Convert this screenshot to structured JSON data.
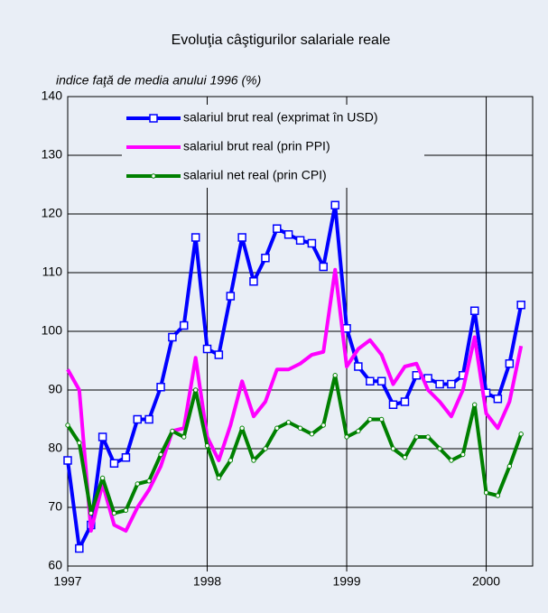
{
  "chart_data": {
    "type": "line",
    "title": "Evoluţia câştigurilor salariale reale",
    "subtitle": "indice faţă de media anului 1996 (%)",
    "x": [
      1997,
      1997.083,
      1997.167,
      1997.25,
      1997.333,
      1997.417,
      1997.5,
      1997.583,
      1997.667,
      1997.75,
      1997.833,
      1997.917,
      1998,
      1998.083,
      1998.167,
      1998.25,
      1998.333,
      1998.417,
      1998.5,
      1998.583,
      1998.667,
      1998.75,
      1998.833,
      1998.917,
      1999,
      1999.083,
      1999.167,
      1999.25,
      1999.333,
      1999.417,
      1999.5,
      1999.583,
      1999.667,
      1999.75,
      1999.833,
      1999.917,
      2000,
      2000.083,
      2000.167,
      2000.25
    ],
    "series": [
      {
        "name": "salariul brut real (exprimat în USD)",
        "color": "#0000ff",
        "marker": "square",
        "values": [
          78,
          63,
          67,
          82,
          77.5,
          78.5,
          85,
          85,
          90.5,
          99,
          101,
          116,
          97,
          96,
          106,
          116,
          108.5,
          112.5,
          117.5,
          116.5,
          115.5,
          115,
          111,
          121.5,
          100.5,
          94,
          91.5,
          91.5,
          87.5,
          88,
          92.5,
          92,
          91,
          91,
          92.5,
          103.5,
          89.5,
          88.5,
          94.5,
          104.5
        ]
      },
      {
        "name": "salariul brut real (prin PPI)",
        "color": "#ff00ff",
        "marker": "none",
        "values": [
          93.5,
          90,
          66,
          74,
          67,
          66,
          70,
          73,
          77,
          83,
          83.5,
          95.5,
          82,
          78,
          84,
          91.5,
          85.5,
          88,
          93.5,
          93.5,
          94.5,
          96,
          96.5,
          110.5,
          94,
          97,
          98.5,
          96,
          91,
          94,
          94.5,
          90,
          88,
          85.5,
          90,
          99,
          86,
          83.5,
          88,
          97.5
        ]
      },
      {
        "name": "salariul net real (prin CPI)",
        "color": "#008000",
        "marker": "circle",
        "values": [
          84,
          81,
          69,
          75,
          69,
          69.5,
          74,
          74.5,
          79,
          83,
          82,
          90,
          80.5,
          75,
          78,
          83.5,
          78,
          80,
          83.5,
          84.5,
          83.5,
          82.5,
          84,
          92.5,
          82,
          83,
          85,
          85,
          80,
          78.5,
          82,
          82,
          80,
          78,
          79,
          87.5,
          72.5,
          72,
          77,
          82.5
        ]
      }
    ],
    "xlim": [
      1997,
      2000.333
    ],
    "xticks": [
      1997,
      1998,
      1999,
      2000
    ],
    "ylim": [
      60,
      140
    ],
    "yticks": [
      60,
      70,
      80,
      90,
      100,
      110,
      120,
      130,
      140
    ],
    "grid": true,
    "legend": "top"
  }
}
